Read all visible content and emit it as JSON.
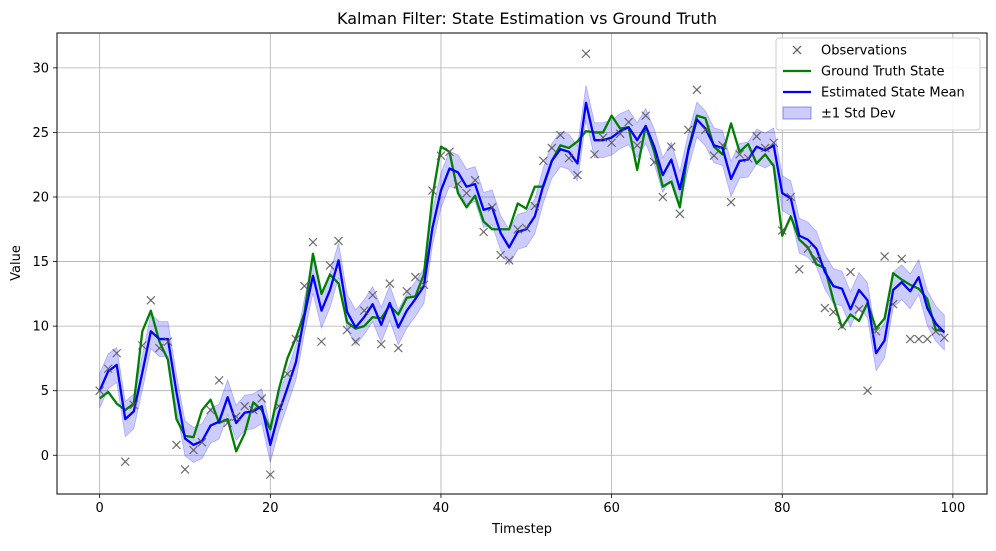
{
  "chart_data": {
    "type": "line",
    "title": "Kalman Filter: State Estimation vs Ground Truth",
    "xlabel": "Timestep",
    "ylabel": "Value",
    "xlim": [
      -5,
      104
    ],
    "ylim": [
      -3,
      32.7
    ],
    "xticks": [
      0,
      20,
      40,
      60,
      80,
      100
    ],
    "yticks": [
      0,
      5,
      10,
      15,
      20,
      25,
      30
    ],
    "grid": true,
    "legend": "top-right",
    "x": [
      0,
      1,
      2,
      3,
      4,
      5,
      6,
      7,
      8,
      9,
      10,
      11,
      12,
      13,
      14,
      15,
      16,
      17,
      18,
      19,
      20,
      21,
      22,
      23,
      24,
      25,
      26,
      27,
      28,
      29,
      30,
      31,
      32,
      33,
      34,
      35,
      36,
      37,
      38,
      39,
      40,
      41,
      42,
      43,
      44,
      45,
      46,
      47,
      48,
      49,
      50,
      51,
      52,
      53,
      54,
      55,
      56,
      57,
      58,
      59,
      60,
      61,
      62,
      63,
      64,
      65,
      66,
      67,
      68,
      69,
      70,
      71,
      72,
      73,
      74,
      75,
      76,
      77,
      78,
      79,
      80,
      81,
      82,
      83,
      84,
      85,
      86,
      87,
      88,
      89,
      90,
      91,
      92,
      93,
      94,
      95,
      96,
      97,
      98,
      99
    ],
    "series": [
      {
        "name": "Observations",
        "kind": "markers",
        "marker": "x",
        "color": "#555555",
        "values": [
          5.0,
          6.7,
          7.9,
          -0.5,
          3.9,
          8.5,
          12.0,
          8.3,
          8.8,
          0.8,
          -1.1,
          0.4,
          1.0,
          3.5,
          5.8,
          2.5,
          3.0,
          3.8,
          3.5,
          4.4,
          -1.5,
          3.8,
          6.3,
          9.0,
          13.1,
          16.5,
          8.8,
          14.7,
          16.6,
          9.7,
          8.8,
          11.2,
          12.4,
          8.6,
          13.3,
          8.3,
          12.7,
          13.8,
          13.2,
          20.5,
          23.2,
          23.5,
          21.0,
          20.3,
          21.3,
          17.3,
          19.2,
          15.5,
          15.1,
          17.5,
          17.6,
          19.3,
          22.8,
          23.8,
          24.8,
          23.0,
          21.7,
          31.1,
          23.3,
          24.6,
          24.2,
          24.9,
          25.8,
          24.0,
          26.3,
          22.7,
          20.0,
          23.9,
          18.7,
          25.2,
          28.3,
          25.2,
          23.2,
          24.0,
          19.6,
          23.3,
          23.0,
          24.7,
          23.8,
          24.2,
          17.4,
          20.0,
          14.4,
          16.0,
          15.2,
          11.4,
          11.1,
          10.0,
          14.2,
          11.3,
          5.0,
          9.6,
          15.4,
          11.7,
          15.2,
          9.0,
          9.0,
          9.0,
          9.6,
          9.1
        ]
      },
      {
        "name": "Ground Truth State",
        "kind": "line",
        "color": "#008000",
        "values": [
          4.4,
          4.9,
          4.0,
          3.5,
          4.0,
          9.6,
          11.2,
          8.8,
          7.4,
          2.8,
          1.5,
          1.4,
          3.5,
          4.3,
          2.5,
          2.8,
          0.3,
          1.7,
          4.1,
          3.5,
          2.0,
          5.1,
          7.5,
          9.1,
          11.0,
          15.6,
          12.5,
          14.0,
          13.3,
          10.3,
          9.8,
          10.0,
          10.7,
          10.6,
          11.6,
          10.9,
          12.2,
          12.3,
          14.0,
          20.0,
          23.9,
          23.5,
          20.3,
          19.2,
          20.1,
          18.1,
          17.5,
          17.5,
          17.5,
          19.5,
          19.1,
          20.8,
          20.8,
          22.8,
          24.0,
          23.8,
          24.3,
          25.1,
          25.0,
          25.0,
          26.3,
          25.3,
          25.4,
          22.1,
          25.5,
          23.5,
          20.8,
          21.2,
          19.2,
          23.7,
          26.3,
          26.1,
          23.9,
          23.3,
          25.7,
          23.5,
          24.1,
          22.6,
          23.3,
          22.4,
          17.0,
          18.5,
          16.7,
          16.1,
          14.8,
          14.5,
          12.0,
          9.9,
          10.9,
          10.4,
          11.8,
          9.8,
          10.6,
          14.1,
          13.6,
          13.2,
          12.9,
          12.1,
          9.7,
          9.6
        ]
      },
      {
        "name": "Estimated State Mean",
        "kind": "line",
        "color": "#0000ff",
        "values": [
          5.0,
          6.5,
          7.0,
          2.8,
          3.4,
          6.4,
          9.6,
          9.0,
          9.0,
          4.9,
          1.3,
          0.8,
          1.1,
          2.3,
          2.6,
          4.5,
          2.5,
          3.3,
          3.4,
          3.8,
          0.8,
          3.3,
          5.2,
          7.2,
          10.8,
          13.9,
          11.2,
          12.8,
          15.1,
          11.1,
          9.9,
          10.7,
          11.7,
          10.1,
          11.8,
          9.9,
          11.2,
          12.1,
          13.1,
          17.6,
          20.5,
          22.2,
          21.9,
          20.8,
          21.0,
          19.0,
          19.2,
          17.2,
          16.1,
          17.3,
          17.5,
          18.5,
          20.9,
          22.8,
          23.7,
          23.5,
          22.6,
          27.3,
          24.4,
          24.4,
          24.6,
          25.1,
          25.4,
          24.4,
          25.5,
          23.9,
          21.7,
          22.9,
          20.6,
          23.6,
          26.0,
          25.3,
          24.0,
          23.8,
          21.4,
          22.8,
          22.9,
          23.9,
          23.6,
          24.0,
          20.3,
          19.9,
          17.0,
          16.7,
          16.0,
          14.2,
          13.1,
          12.9,
          11.3,
          12.8,
          12.0,
          7.9,
          8.9,
          12.8,
          13.4,
          12.7,
          13.8,
          11.4,
          10.2,
          9.5
        ]
      }
    ],
    "band": {
      "name": "±1 Std Dev",
      "color": "#0000ff",
      "opacity": 0.2,
      "std": 1.35
    }
  }
}
